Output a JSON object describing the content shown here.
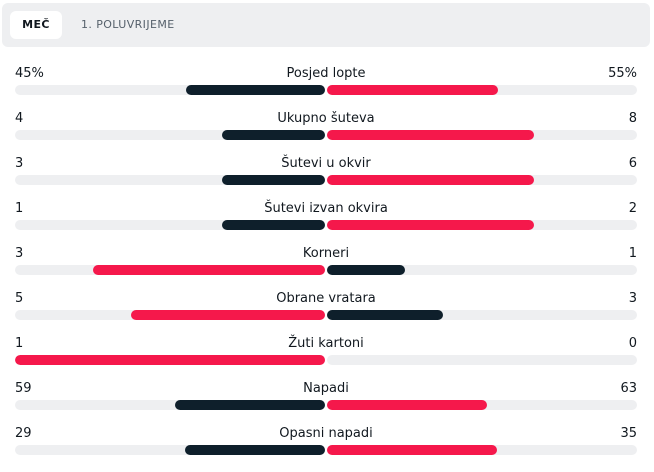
{
  "tabs": [
    {
      "label": "MEČ",
      "active": true
    },
    {
      "label": "1. POLUVRIJEME",
      "active": false
    }
  ],
  "colors": {
    "dark": "#0e1f2b",
    "red": "#f5184b",
    "track": "#eeeff1"
  },
  "stats": [
    {
      "name": "Posjed lopte",
      "home": "45%",
      "away": "55%",
      "home_num": 45,
      "away_num": 55,
      "leader": "away"
    },
    {
      "name": "Ukupno šuteva",
      "home": "4",
      "away": "8",
      "home_num": 4,
      "away_num": 8,
      "leader": "away"
    },
    {
      "name": "Šutevi u okvir",
      "home": "3",
      "away": "6",
      "home_num": 3,
      "away_num": 6,
      "leader": "away"
    },
    {
      "name": "Šutevi izvan okvira",
      "home": "1",
      "away": "2",
      "home_num": 1,
      "away_num": 2,
      "leader": "away"
    },
    {
      "name": "Korneri",
      "home": "3",
      "away": "1",
      "home_num": 3,
      "away_num": 1,
      "leader": "home"
    },
    {
      "name": "Obrane vratara",
      "home": "5",
      "away": "3",
      "home_num": 5,
      "away_num": 3,
      "leader": "home"
    },
    {
      "name": "Žuti kartoni",
      "home": "1",
      "away": "0",
      "home_num": 1,
      "away_num": 0,
      "leader": "home"
    },
    {
      "name": "Napadi",
      "home": "59",
      "away": "63",
      "home_num": 59,
      "away_num": 63,
      "leader": "away"
    },
    {
      "name": "Opasni napadi",
      "home": "29",
      "away": "35",
      "home_num": 29,
      "away_num": 35,
      "leader": "away"
    }
  ]
}
